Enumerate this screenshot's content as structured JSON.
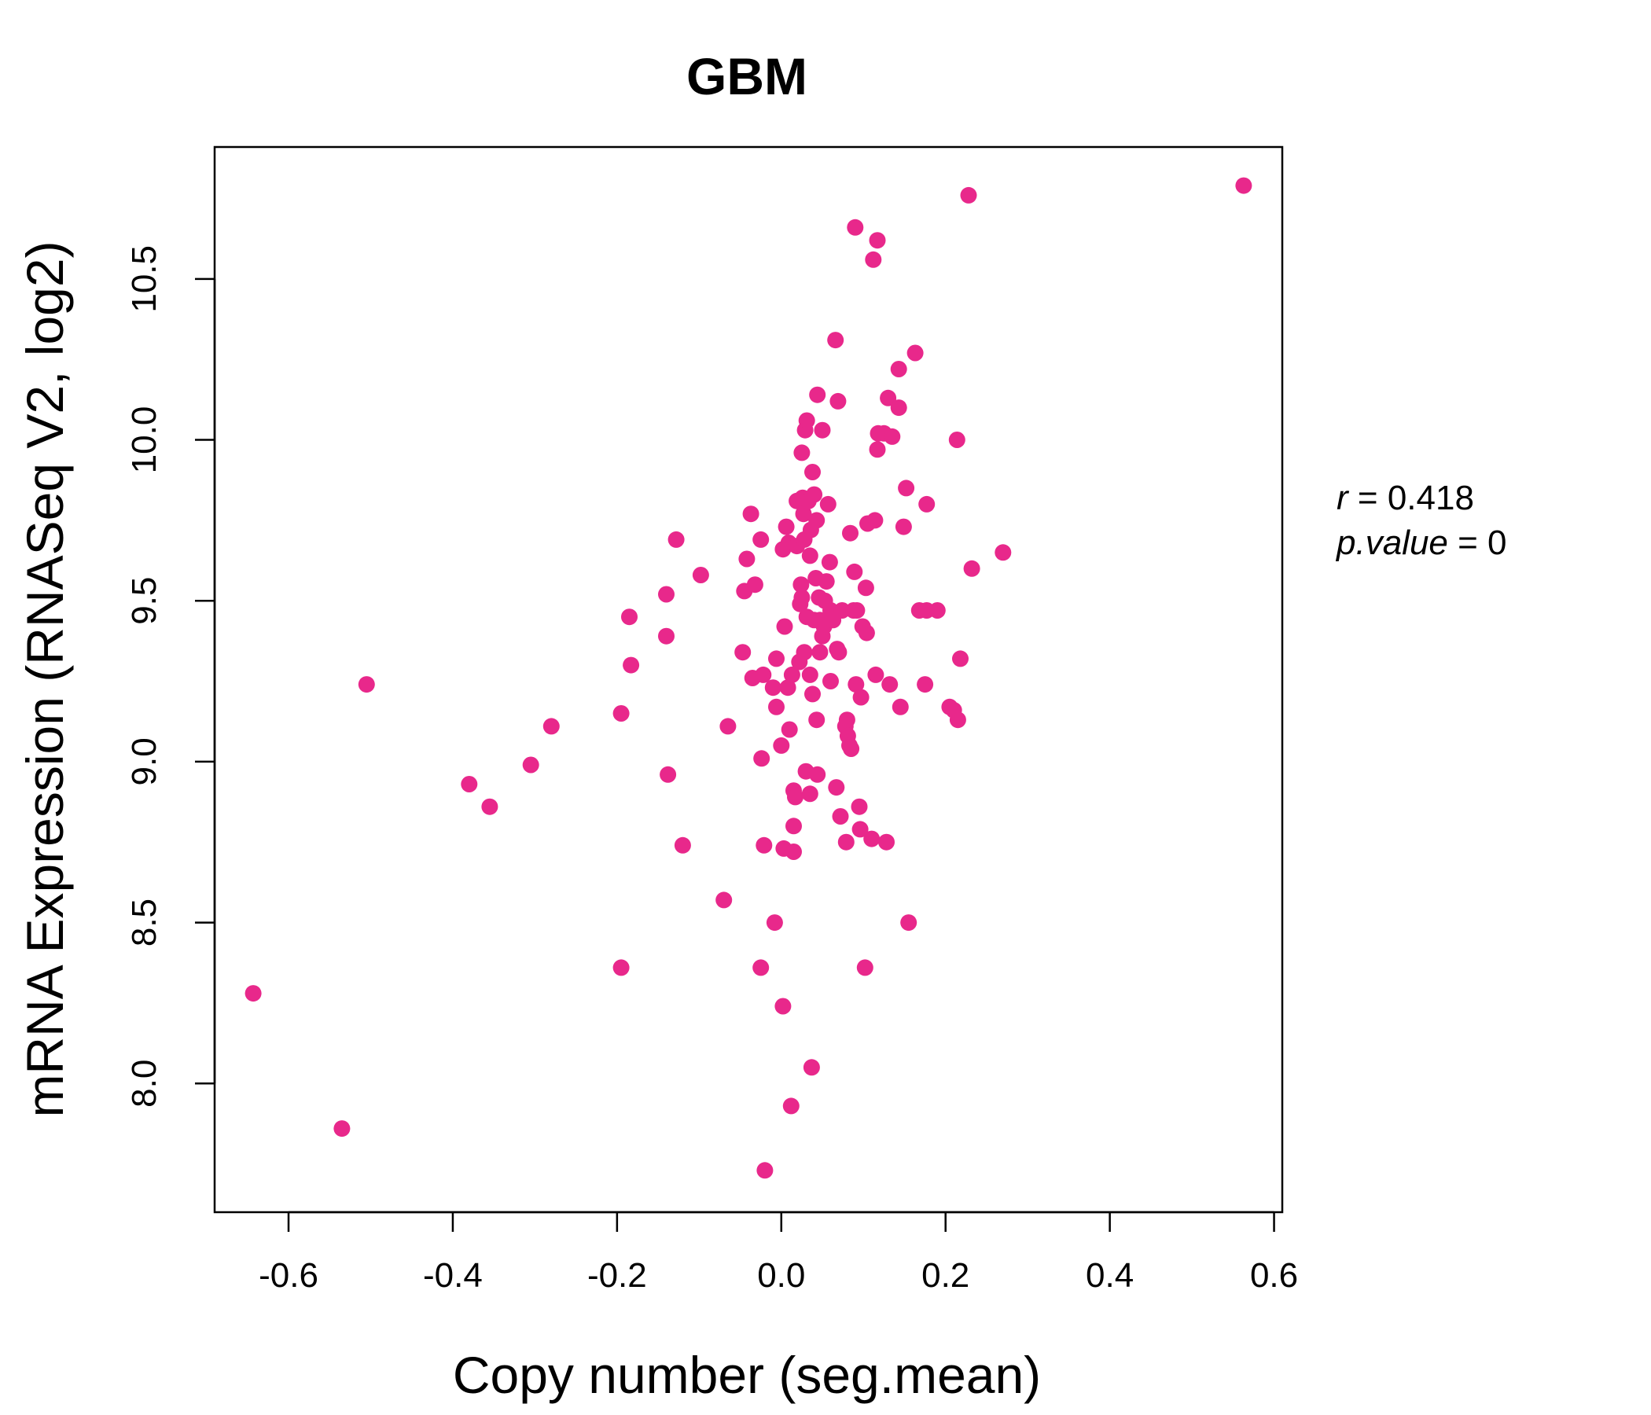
{
  "chart_data": {
    "type": "scatter",
    "title": "GBM",
    "xlabel": "Copy number (seg.mean)",
    "ylabel": "mRNA Expression (RNASeq V2, log2)",
    "xlim": [
      -0.69,
      0.61
    ],
    "ylim": [
      7.6,
      10.91
    ],
    "xticks": [
      "-0.6",
      "-0.4",
      "-0.2",
      "0.0",
      "0.2",
      "0.4",
      "0.6"
    ],
    "xtick_values": [
      -0.6,
      -0.4,
      -0.2,
      0.0,
      0.2,
      0.4,
      0.6
    ],
    "yticks": [
      "8.0",
      "8.5",
      "9.0",
      "9.5",
      "10.0",
      "10.5"
    ],
    "ytick_values": [
      8.0,
      8.5,
      9.0,
      9.5,
      10.0,
      10.5
    ],
    "grid": false,
    "legend": "none",
    "point_color": "#e8288b",
    "title_color": "#e8288b",
    "annotations": {
      "r_label": "r",
      "r_value": "0.418",
      "p_label": "p.value",
      "p_value": "0"
    },
    "points": [
      [
        -0.643,
        8.28
      ],
      [
        -0.535,
        7.86
      ],
      [
        -0.505,
        9.24
      ],
      [
        -0.38,
        8.93
      ],
      [
        -0.355,
        8.86
      ],
      [
        -0.305,
        8.99
      ],
      [
        -0.28,
        9.11
      ],
      [
        -0.195,
        9.15
      ],
      [
        -0.195,
        8.36
      ],
      [
        -0.185,
        9.45
      ],
      [
        -0.183,
        9.3
      ],
      [
        -0.14,
        9.52
      ],
      [
        -0.14,
        9.39
      ],
      [
        -0.138,
        8.96
      ],
      [
        -0.128,
        9.69
      ],
      [
        -0.12,
        8.74
      ],
      [
        -0.098,
        9.58
      ],
      [
        -0.07,
        8.57
      ],
      [
        -0.065,
        9.11
      ],
      [
        -0.047,
        9.34
      ],
      [
        -0.045,
        9.53
      ],
      [
        -0.042,
        9.63
      ],
      [
        -0.037,
        9.77
      ],
      [
        -0.035,
        9.26
      ],
      [
        -0.032,
        9.55
      ],
      [
        -0.025,
        9.69
      ],
      [
        -0.025,
        8.36
      ],
      [
        -0.024,
        9.01
      ],
      [
        -0.022,
        9.27
      ],
      [
        -0.021,
        8.74
      ],
      [
        -0.02,
        7.73
      ],
      [
        -0.01,
        9.23
      ],
      [
        -0.008,
        8.5
      ],
      [
        -0.006,
        9.32
      ],
      [
        -0.006,
        9.17
      ],
      [
        0.0,
        9.05
      ],
      [
        0.002,
        8.24
      ],
      [
        0.002,
        9.66
      ],
      [
        0.003,
        8.73
      ],
      [
        0.004,
        9.42
      ],
      [
        0.006,
        9.73
      ],
      [
        0.008,
        9.23
      ],
      [
        0.009,
        9.68
      ],
      [
        0.01,
        9.1
      ],
      [
        0.012,
        7.93
      ],
      [
        0.013,
        9.27
      ],
      [
        0.015,
        8.8
      ],
      [
        0.015,
        8.72
      ],
      [
        0.015,
        8.91
      ],
      [
        0.017,
        8.89
      ],
      [
        0.019,
        9.81
      ],
      [
        0.019,
        9.67
      ],
      [
        0.022,
        9.31
      ],
      [
        0.023,
        9.49
      ],
      [
        0.024,
        9.55
      ],
      [
        0.025,
        9.51
      ],
      [
        0.025,
        9.96
      ],
      [
        0.026,
        9.82
      ],
      [
        0.027,
        9.77
      ],
      [
        0.028,
        9.34
      ],
      [
        0.028,
        9.69
      ],
      [
        0.029,
        10.03
      ],
      [
        0.03,
        8.97
      ],
      [
        0.031,
        9.45
      ],
      [
        0.031,
        10.06
      ],
      [
        0.033,
        9.81
      ],
      [
        0.035,
        8.9
      ],
      [
        0.035,
        9.64
      ],
      [
        0.035,
        9.27
      ],
      [
        0.036,
        9.72
      ],
      [
        0.037,
        8.05
      ],
      [
        0.038,
        9.9
      ],
      [
        0.038,
        9.21
      ],
      [
        0.04,
        9.83
      ],
      [
        0.04,
        9.44
      ],
      [
        0.042,
        9.57
      ],
      [
        0.043,
        9.13
      ],
      [
        0.043,
        9.75
      ],
      [
        0.044,
        8.96
      ],
      [
        0.044,
        10.14
      ],
      [
        0.046,
        9.51
      ],
      [
        0.047,
        9.44
      ],
      [
        0.047,
        9.34
      ],
      [
        0.05,
        9.39
      ],
      [
        0.05,
        10.03
      ],
      [
        0.052,
        9.42
      ],
      [
        0.053,
        9.5
      ],
      [
        0.055,
        9.56
      ],
      [
        0.057,
        9.8
      ],
      [
        0.059,
        9.62
      ],
      [
        0.06,
        9.25
      ],
      [
        0.06,
        9.47
      ],
      [
        0.063,
        9.44
      ],
      [
        0.066,
        10.31
      ],
      [
        0.067,
        8.92
      ],
      [
        0.068,
        9.35
      ],
      [
        0.069,
        10.12
      ],
      [
        0.07,
        9.34
      ],
      [
        0.072,
        8.83
      ],
      [
        0.074,
        9.47
      ],
      [
        0.078,
        9.11
      ],
      [
        0.079,
        8.75
      ],
      [
        0.08,
        9.13
      ],
      [
        0.081,
        9.08
      ],
      [
        0.083,
        9.05
      ],
      [
        0.084,
        9.71
      ],
      [
        0.085,
        9.04
      ],
      [
        0.088,
        9.47
      ],
      [
        0.089,
        9.59
      ],
      [
        0.09,
        10.66
      ],
      [
        0.091,
        9.24
      ],
      [
        0.092,
        9.47
      ],
      [
        0.095,
        8.86
      ],
      [
        0.096,
        8.79
      ],
      [
        0.097,
        9.2
      ],
      [
        0.099,
        9.42
      ],
      [
        0.102,
        8.36
      ],
      [
        0.103,
        9.54
      ],
      [
        0.104,
        9.4
      ],
      [
        0.105,
        9.74
      ],
      [
        0.11,
        8.76
      ],
      [
        0.112,
        10.56
      ],
      [
        0.114,
        9.75
      ],
      [
        0.115,
        9.27
      ],
      [
        0.117,
        10.62
      ],
      [
        0.117,
        9.97
      ],
      [
        0.118,
        10.02
      ],
      [
        0.125,
        10.02
      ],
      [
        0.128,
        8.75
      ],
      [
        0.13,
        10.13
      ],
      [
        0.132,
        9.24
      ],
      [
        0.135,
        10.01
      ],
      [
        0.143,
        10.22
      ],
      [
        0.143,
        10.1
      ],
      [
        0.145,
        9.17
      ],
      [
        0.149,
        9.73
      ],
      [
        0.152,
        9.85
      ],
      [
        0.155,
        8.5
      ],
      [
        0.163,
        10.27
      ],
      [
        0.168,
        9.47
      ],
      [
        0.175,
        9.24
      ],
      [
        0.177,
        9.8
      ],
      [
        0.177,
        9.47
      ],
      [
        0.19,
        9.47
      ],
      [
        0.205,
        9.17
      ],
      [
        0.21,
        9.16
      ],
      [
        0.214,
        10.0
      ],
      [
        0.215,
        9.13
      ],
      [
        0.218,
        9.32
      ],
      [
        0.228,
        10.76
      ],
      [
        0.232,
        9.6
      ],
      [
        0.27,
        9.65
      ],
      [
        0.563,
        10.79
      ]
    ]
  }
}
